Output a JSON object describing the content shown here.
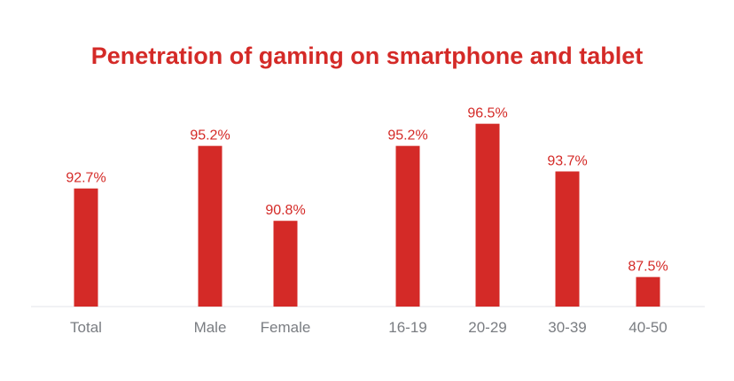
{
  "chart_data": {
    "type": "bar",
    "title": "Penetration of gaming on smartphone and tablet",
    "categories": [
      "Total",
      "Male",
      "Female",
      "16-19",
      "20-29",
      "30-39",
      "40-50"
    ],
    "values": [
      92.7,
      95.2,
      90.8,
      95.2,
      96.5,
      93.7,
      87.5
    ],
    "value_labels": [
      "92.7%",
      "95.2%",
      "90.8%",
      "95.2%",
      "96.5%",
      "93.7%",
      "87.5%"
    ],
    "groups": [
      {
        "categories": [
          "Total"
        ]
      },
      {
        "categories": [
          "Male",
          "Female"
        ]
      },
      {
        "categories": [
          "16-19",
          "20-29",
          "30-39",
          "40-50"
        ]
      }
    ],
    "xlabel": "",
    "ylabel": "",
    "ylim": [
      0,
      100
    ],
    "grid": false,
    "legend": "none"
  },
  "colors": {
    "bar": "#d42a27",
    "title": "#d42a27",
    "value_label": "#d42a27",
    "category_label": "#7a7d82",
    "baseline": "#e3e5e8"
  }
}
